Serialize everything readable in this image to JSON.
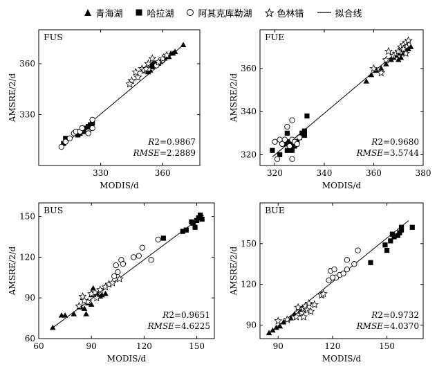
{
  "legend": {
    "qinghai": "青海湖",
    "hala": "哈拉湖",
    "aqikekule": "阿其克库勒湖",
    "selinco": "色林错",
    "fitline": "拟合线"
  },
  "chart_data": [
    {
      "panel": "FUS",
      "type": "scatter",
      "xlabel": "MODIS/d",
      "ylabel": "AMSRE/2/d",
      "xlim": [
        300,
        378
      ],
      "ylim": [
        300,
        380
      ],
      "xticks": [
        330,
        360
      ],
      "yticks": [
        330,
        360
      ],
      "r2_label": "R",
      "r2_value": "2=0.9867",
      "rmse_label": "RMSE",
      "rmse_value": "=2.2889",
      "fit": [
        [
          311,
          311
        ],
        [
          370,
          371
        ]
      ],
      "series": [
        {
          "name": "青海湖",
          "marker": "triangle",
          "points": [
            [
              370,
              371
            ],
            [
              366,
              367
            ],
            [
              365,
              366
            ],
            [
              364,
              366
            ],
            [
              363,
              364
            ],
            [
              362,
              364
            ],
            [
              361,
              363
            ],
            [
              360,
              363
            ],
            [
              359,
              361
            ],
            [
              358,
              360
            ],
            [
              356,
              359
            ],
            [
              355,
              358
            ],
            [
              354,
              356
            ],
            [
              353,
              355
            ]
          ]
        },
        {
          "name": "哈拉湖",
          "marker": "square",
          "points": [
            [
              312,
              313
            ],
            [
              313,
              316
            ],
            [
              318,
              319
            ],
            [
              319,
              320
            ],
            [
              319,
              318
            ],
            [
              320,
              319
            ],
            [
              321,
              320
            ],
            [
              322,
              321
            ],
            [
              322,
              322
            ],
            [
              324,
              323
            ],
            [
              325,
              324
            ],
            [
              326,
              325
            ],
            [
              323,
              320
            ],
            [
              354,
              359
            ],
            [
              356,
              360
            ]
          ]
        },
        {
          "name": "阿其克库勒湖",
          "marker": "circle",
          "points": [
            [
              311,
              311
            ],
            [
              313,
              314
            ],
            [
              315,
              316
            ],
            [
              317,
              319
            ],
            [
              318,
              320
            ],
            [
              320,
              320
            ],
            [
              321,
              322
            ],
            [
              324,
              320
            ],
            [
              326,
              322
            ],
            [
              326,
              327
            ],
            [
              324,
              319
            ],
            [
              351,
              356
            ],
            [
              353,
              357
            ],
            [
              357,
              359
            ],
            [
              360,
              362
            ]
          ]
        },
        {
          "name": "色林错",
          "marker": "star",
          "points": [
            [
              345,
              350
            ],
            [
              347,
              355
            ],
            [
              348,
              352
            ],
            [
              350,
              357
            ],
            [
              351,
              356
            ],
            [
              352,
              357
            ],
            [
              353,
              360
            ],
            [
              355,
              363
            ],
            [
              358,
              361
            ],
            [
              360,
              363
            ],
            [
              362,
              365
            ],
            [
              344,
              348
            ]
          ]
        }
      ]
    },
    {
      "panel": "FUE",
      "type": "scatter",
      "xlabel": "MODIS/d",
      "ylabel": "AMSRE/2/d",
      "xlim": [
        314,
        380
      ],
      "ylim": [
        315,
        378
      ],
      "xticks": [
        320,
        340,
        360,
        380
      ],
      "yticks": [
        320,
        340,
        360
      ],
      "r2_label": "R",
      "r2_value": "2=0.9680",
      "rmse_label": "RMSE",
      "rmse_value": "=3.5744",
      "fit": [
        [
          319,
          319
        ],
        [
          375,
          373
        ]
      ],
      "series": [
        {
          "name": "青海湖",
          "marker": "triangle",
          "points": [
            [
              357,
              354
            ],
            [
              359,
              357
            ],
            [
              361,
              359
            ],
            [
              363,
              360
            ],
            [
              365,
              362
            ],
            [
              367,
              364
            ],
            [
              368,
              365
            ],
            [
              369,
              366
            ],
            [
              370,
              367
            ],
            [
              371,
              365
            ],
            [
              372,
              367
            ],
            [
              373,
              368
            ],
            [
              374,
              369
            ],
            [
              375,
              370
            ],
            [
              370,
              364
            ]
          ]
        },
        {
          "name": "哈拉湖",
          "marker": "square",
          "points": [
            [
              319,
              322
            ],
            [
              322,
              320
            ],
            [
              324,
              325
            ],
            [
              325,
              322
            ],
            [
              326,
              326
            ],
            [
              327,
              322
            ],
            [
              328,
              324
            ],
            [
              329,
              326
            ],
            [
              330,
              328
            ],
            [
              331,
              330
            ],
            [
              332,
              329
            ],
            [
              332,
              331
            ],
            [
              333,
              338
            ],
            [
              325,
              330
            ]
          ]
        },
        {
          "name": "阿其克库勒湖",
          "marker": "circle",
          "points": [
            [
              320,
              326
            ],
            [
              321,
              318
            ],
            [
              322,
              327
            ],
            [
              323,
              325
            ],
            [
              324,
              327
            ],
            [
              325,
              333
            ],
            [
              326,
              324
            ],
            [
              327,
              327
            ],
            [
              327,
              336
            ],
            [
              328,
              326
            ],
            [
              329,
              325
            ],
            [
              330,
              328
            ],
            [
              327,
              318
            ]
          ]
        },
        {
          "name": "色林错",
          "marker": "star",
          "points": [
            [
              360,
              360
            ],
            [
              363,
              358
            ],
            [
              365,
              364
            ],
            [
              366,
              368
            ],
            [
              368,
              366
            ],
            [
              369,
              367
            ],
            [
              370,
              368
            ],
            [
              371,
              370
            ],
            [
              372,
              371
            ],
            [
              373,
              372
            ],
            [
              374,
              373
            ],
            [
              372,
              369
            ],
            [
              373,
              367
            ]
          ]
        }
      ]
    },
    {
      "panel": "BUS",
      "type": "scatter",
      "xlabel": "MODIS/d",
      "ylabel": "AMSRE/2/d",
      "xlim": [
        60,
        160
      ],
      "ylim": [
        60,
        160
      ],
      "xticks": [
        60,
        90,
        120,
        150
      ],
      "yticks": [
        60,
        90,
        120,
        150
      ],
      "r2_label": "R",
      "r2_value": "2=0.9651",
      "rmse_label": "RMSE",
      "rmse_value": "=4.6225",
      "fit": [
        [
          68,
          68
        ],
        [
          154,
          151
        ]
      ],
      "series": [
        {
          "name": "青海湖",
          "marker": "triangle",
          "points": [
            [
              68,
              68
            ],
            [
              73,
              77
            ],
            [
              75,
              77
            ],
            [
              80,
              78
            ],
            [
              84,
              83
            ],
            [
              86,
              82
            ],
            [
              87,
              78
            ],
            [
              88,
              86
            ],
            [
              90,
              92
            ],
            [
              91,
              97
            ],
            [
              93,
              93
            ],
            [
              95,
              91
            ],
            [
              96,
              92
            ],
            [
              98,
              93
            ],
            [
              90,
              85
            ]
          ]
        },
        {
          "name": "哈拉湖",
          "marker": "square",
          "points": [
            [
              131,
              134
            ],
            [
              142,
              139
            ],
            [
              144,
              140
            ],
            [
              147,
              146
            ],
            [
              148,
              145
            ],
            [
              149,
              142
            ],
            [
              150,
              147
            ],
            [
              151,
              149
            ],
            [
              152,
              150
            ],
            [
              153,
              148
            ],
            [
              152,
              151
            ]
          ]
        },
        {
          "name": "阿其克库勒湖",
          "marker": "circle",
          "points": [
            [
              103,
              106
            ],
            [
              104,
              114
            ],
            [
              105,
              109
            ],
            [
              107,
              118
            ],
            [
              108,
              115
            ],
            [
              114,
              120
            ],
            [
              117,
              121
            ],
            [
              119,
              127
            ],
            [
              124,
              118
            ],
            [
              128,
              133
            ]
          ]
        },
        {
          "name": "色林错",
          "marker": "star",
          "points": [
            [
              83,
              84
            ],
            [
              85,
              91
            ],
            [
              88,
              87
            ],
            [
              90,
              93
            ],
            [
              92,
              94
            ],
            [
              95,
              96
            ],
            [
              98,
              98
            ],
            [
              100,
              100
            ],
            [
              102,
              101
            ],
            [
              106,
              104
            ],
            [
              86,
              88
            ],
            [
              93,
              90
            ]
          ]
        }
      ]
    },
    {
      "panel": "BUE",
      "type": "scatter",
      "xlabel": "MODIS/d",
      "ylabel": "AMSRE/2/d",
      "xlim": [
        80,
        170
      ],
      "ylim": [
        80,
        180
      ],
      "xticks": [
        90,
        120,
        150
      ],
      "yticks": [
        90,
        120,
        150
      ],
      "r2_label": "R",
      "r2_value": "2=0.9732",
      "rmse_label": "RMSE",
      "rmse_value": "=4.0370",
      "fit": [
        [
          84,
          83
        ],
        [
          162,
          167
        ]
      ],
      "series": [
        {
          "name": "青海湖",
          "marker": "triangle",
          "points": [
            [
              85,
              84
            ],
            [
              87,
              86
            ],
            [
              89,
              88
            ],
            [
              91,
              89
            ],
            [
              93,
              92
            ],
            [
              95,
              94
            ],
            [
              97,
              95
            ],
            [
              99,
              98
            ],
            [
              102,
              100
            ],
            [
              104,
              103
            ]
          ]
        },
        {
          "name": "哈拉湖",
          "marker": "square",
          "points": [
            [
              141,
              136
            ],
            [
              149,
              149
            ],
            [
              150,
              145
            ],
            [
              152,
              152
            ],
            [
              153,
              157
            ],
            [
              154,
              155
            ],
            [
              156,
              156
            ],
            [
              157,
              158
            ],
            [
              158,
              162
            ],
            [
              158,
              160
            ],
            [
              164,
              162
            ]
          ]
        },
        {
          "name": "阿其克库勒湖",
          "marker": "circle",
          "points": [
            [
              118,
              123
            ],
            [
              119,
              130
            ],
            [
              121,
              131
            ],
            [
              122,
              125
            ],
            [
              124,
              127
            ],
            [
              126,
              128
            ],
            [
              128,
              131
            ],
            [
              128,
              138
            ],
            [
              132,
              135
            ],
            [
              134,
              145
            ],
            [
              120,
              125
            ]
          ]
        },
        {
          "name": "色林错",
          "marker": "star",
          "points": [
            [
              90,
              93
            ],
            [
              95,
              94
            ],
            [
              100,
              96
            ],
            [
              101,
              103
            ],
            [
              103,
              99
            ],
            [
              104,
              102
            ],
            [
              105,
              104
            ],
            [
              106,
              101
            ],
            [
              107,
              106
            ],
            [
              108,
              100
            ],
            [
              110,
              105
            ],
            [
              114,
              112
            ],
            [
              115,
              113
            ],
            [
              104,
              96
            ]
          ]
        }
      ]
    }
  ]
}
